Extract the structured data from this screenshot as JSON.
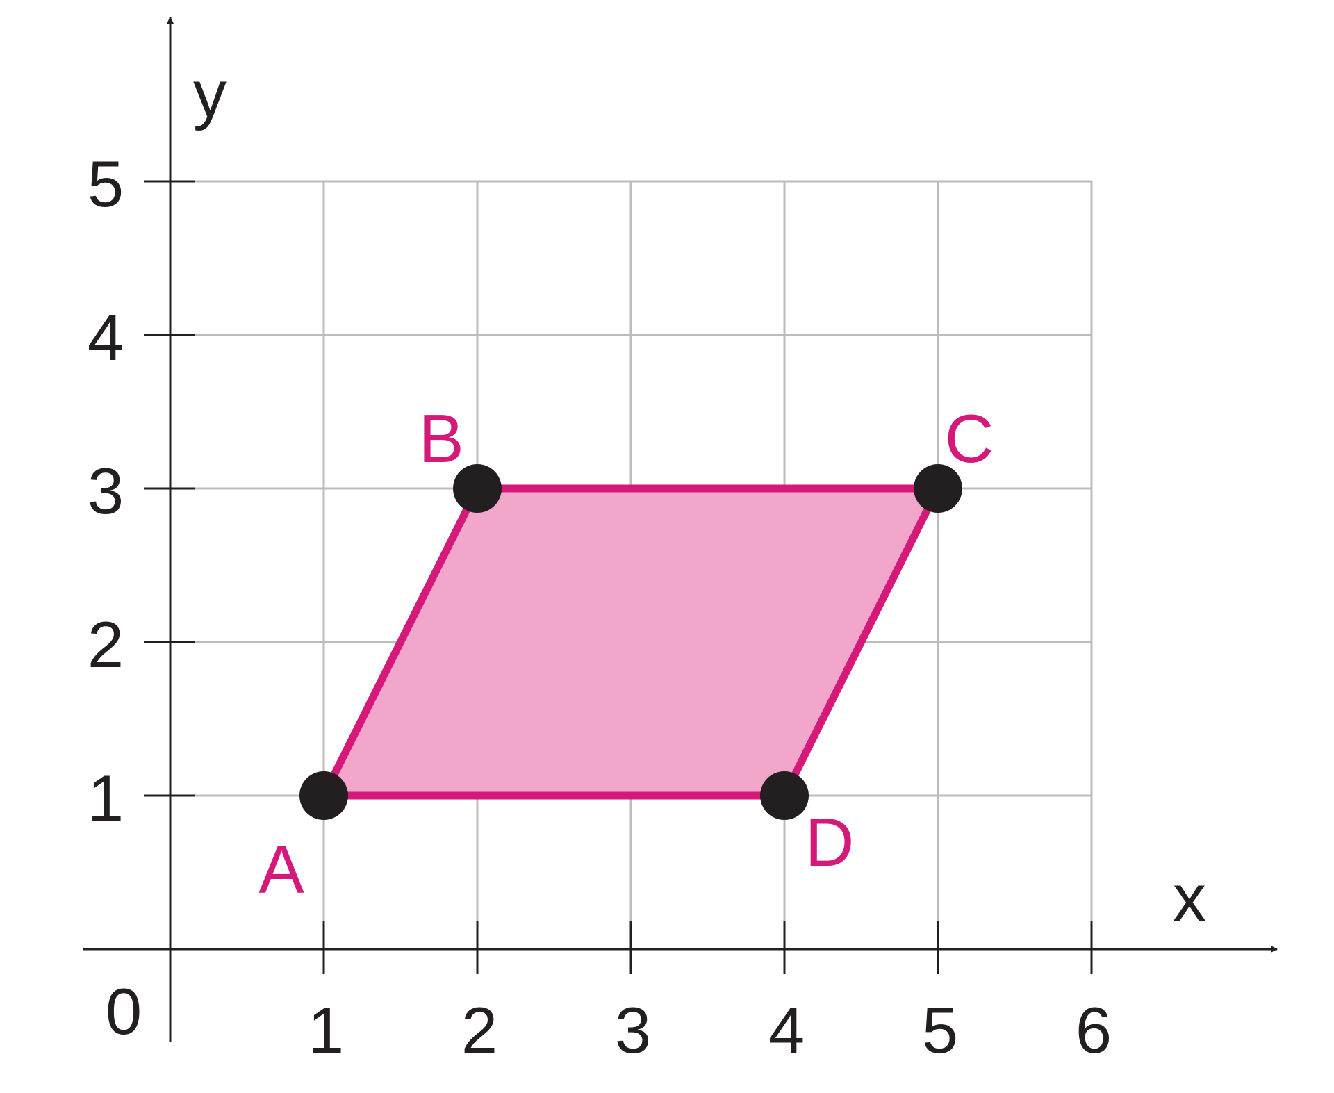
{
  "axes": {
    "x_label": "x",
    "y_label": "y",
    "origin_label": "0",
    "x_ticks": [
      "1",
      "2",
      "3",
      "4",
      "5",
      "6"
    ],
    "y_ticks": [
      "1",
      "2",
      "3",
      "4",
      "5"
    ]
  },
  "points": [
    {
      "label": "A",
      "x": 1,
      "y": 1
    },
    {
      "label": "B",
      "x": 2,
      "y": 3
    },
    {
      "label": "C",
      "x": 5,
      "y": 3
    },
    {
      "label": "D",
      "x": 4,
      "y": 1
    }
  ],
  "colors": {
    "shape_fill": "#f2a6c9",
    "shape_stroke": "#d4197a",
    "label": "#d4197a",
    "point": "#231f20",
    "grid": "#bcbcbc",
    "axis": "#231f20"
  }
}
